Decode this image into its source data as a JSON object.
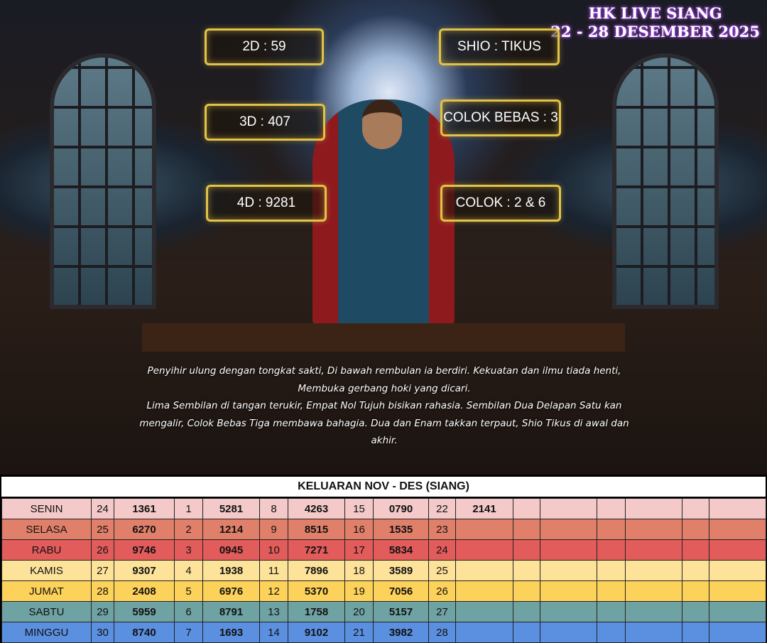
{
  "title": {
    "line1": "HK LIVE SIANG",
    "line2": "22 - 28 DESEMBER 2025"
  },
  "predictions": {
    "2d": "2D : 59",
    "3d": "3D : 407",
    "4d": "4D : 9281",
    "shio": "SHIO : TIKUS",
    "colok_bebas": "COLOK BEBAS : 3",
    "colok": "COLOK : 2 & 6"
  },
  "poem": {
    "line1": "Penyihir ulung dengan tongkat sakti, Di bawah rembulan ia berdiri. Kekuatan dan ilmu tiada henti, Membuka gerbang hoki yang dicari.",
    "line2": "Lima Sembilan di tangan terukir, Empat Nol Tujuh bisikan rahasia. Sembilan Dua Delapan Satu kan mengalir, Colok Bebas Tiga membawa bahagia. Dua dan Enam takkan terpaut, Shio Tikus di awal dan akhir."
  },
  "table": {
    "header": "KELUARAN NOV - DES (SIANG)",
    "rows": [
      {
        "day": "SENIN",
        "color": "#f3c9c9",
        "cells": [
          "24",
          "1361",
          "1",
          "5281",
          "8",
          "4263",
          "15",
          "0790",
          "22",
          "2141",
          "",
          "",
          "",
          "",
          "",
          ""
        ]
      },
      {
        "day": "SELASA",
        "color": "#e0806a",
        "cells": [
          "25",
          "6270",
          "2",
          "1214",
          "9",
          "8515",
          "16",
          "1535",
          "23",
          "",
          "",
          "",
          "",
          "",
          "",
          ""
        ]
      },
      {
        "day": "RABU",
        "color": "#e25c5c",
        "cells": [
          "26",
          "9746",
          "3",
          "0945",
          "10",
          "7271",
          "17",
          "5834",
          "24",
          "",
          "",
          "",
          "",
          "",
          "",
          ""
        ]
      },
      {
        "day": "KAMIS",
        "color": "#fde29a",
        "cells": [
          "27",
          "9307",
          "4",
          "1938",
          "11",
          "7896",
          "18",
          "3589",
          "25",
          "",
          "",
          "",
          "",
          "",
          "",
          ""
        ]
      },
      {
        "day": "JUMAT",
        "color": "#fdd25a",
        "cells": [
          "28",
          "2408",
          "5",
          "6976",
          "12",
          "5370",
          "19",
          "7056",
          "26",
          "",
          "",
          "",
          "",
          "",
          "",
          ""
        ]
      },
      {
        "day": "SABTU",
        "color": "#6fa3a3",
        "cells": [
          "29",
          "5959",
          "6",
          "8791",
          "13",
          "1758",
          "20",
          "5157",
          "27",
          "",
          "",
          "",
          "",
          "",
          "",
          ""
        ]
      },
      {
        "day": "MINGGU",
        "color": "#5b8fe0",
        "cells": [
          "30",
          "8740",
          "7",
          "1693",
          "14",
          "9102",
          "21",
          "3982",
          "28",
          "",
          "",
          "",
          "",
          "",
          "",
          ""
        ]
      }
    ]
  }
}
